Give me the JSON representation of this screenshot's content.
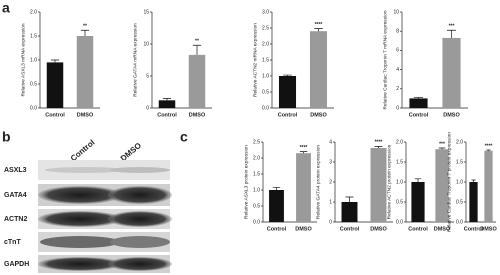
{
  "panels": [
    "a",
    "b",
    "c"
  ],
  "blot": {
    "columns": [
      "Control",
      "DMSO"
    ],
    "rows": [
      "ASXL3",
      "GATA4",
      "ACTN2",
      "cTnT",
      "GAPDH"
    ]
  },
  "chart_data": [
    {
      "type": "bar",
      "ylabel": "Relative ASXL3 mRNA expression",
      "categories": [
        "Control",
        "DMSO"
      ],
      "values": [
        0.95,
        1.5
      ],
      "errors": [
        0.05,
        0.12
      ],
      "colors": [
        "#111111",
        "#9a9a9a"
      ],
      "annotation": "**",
      "ylim": [
        0,
        2
      ],
      "yticks": [
        {
          "value": 0,
          "label": "0.0"
        },
        0.5,
        {
          "value": 1,
          "label": "1.0"
        },
        1.5,
        {
          "value": 2,
          "label": "2.0"
        }
      ]
    },
    {
      "type": "bar",
      "ylabel": "Relative GATA4 mRNA expression",
      "categories": [
        "Control",
        "DMSO"
      ],
      "values": [
        1.2,
        8.3
      ],
      "errors": [
        0.3,
        1.5
      ],
      "colors": [
        "#111111",
        "#9a9a9a"
      ],
      "annotation": "**",
      "ylim": [
        0,
        15
      ],
      "yticks": [
        0,
        5,
        10,
        15
      ]
    },
    {
      "type": "bar",
      "ylabel": "Relative ACTN2 mRNA expression",
      "categories": [
        "Control",
        "DMSO"
      ],
      "values": [
        1.0,
        2.4
      ],
      "errors": [
        0.03,
        0.08
      ],
      "colors": [
        "#111111",
        "#9a9a9a"
      ],
      "annotation": "****",
      "ylim": [
        0,
        3
      ],
      "yticks": [
        {
          "value": 0,
          "label": "0.0"
        },
        0.5,
        {
          "value": 1,
          "label": "1.0"
        },
        1.5,
        {
          "value": 2,
          "label": "2.0"
        },
        2.5,
        {
          "value": 3,
          "label": "3.0"
        }
      ]
    },
    {
      "type": "bar",
      "ylabel": "Relative Cardiac Troponin T mRNA expression",
      "categories": [
        "Control",
        "DMSO"
      ],
      "values": [
        1.0,
        7.3
      ],
      "errors": [
        0.1,
        0.8
      ],
      "colors": [
        "#111111",
        "#9a9a9a"
      ],
      "annotation": "***",
      "ylim": [
        0,
        10
      ],
      "yticks": [
        0,
        2,
        4,
        6,
        8,
        10
      ]
    },
    {
      "type": "bar",
      "ylabel": "Relative ASXL3 protein expression",
      "categories": [
        "Control",
        "DMSO"
      ],
      "values": [
        1.0,
        2.15
      ],
      "errors": [
        0.08,
        0.05
      ],
      "colors": [
        "#111111",
        "#9a9a9a"
      ],
      "annotation": "****",
      "ylim": [
        0,
        2.5
      ],
      "yticks": [
        {
          "value": 0,
          "label": "0.0"
        },
        0.5,
        {
          "value": 1,
          "label": "1.0"
        },
        1.5,
        {
          "value": 2,
          "label": "2.0"
        },
        2.5
      ]
    },
    {
      "type": "bar",
      "ylabel": "Relative GATA4 protein expression",
      "categories": [
        "Control",
        "DMSO"
      ],
      "values": [
        1.0,
        3.7
      ],
      "errors": [
        0.25,
        0.08
      ],
      "colors": [
        "#111111",
        "#9a9a9a"
      ],
      "annotation": "****",
      "ylim": [
        0,
        4
      ],
      "yticks": [
        0,
        1,
        2,
        3,
        4
      ]
    },
    {
      "type": "bar",
      "ylabel": "Relative ACTN2 protein expression",
      "categories": [
        "Control",
        "DMSO"
      ],
      "values": [
        1.0,
        1.82
      ],
      "errors": [
        0.08,
        0.03
      ],
      "colors": [
        "#111111",
        "#9a9a9a"
      ],
      "annotation": "***",
      "ylim": [
        0,
        2
      ],
      "yticks": [
        {
          "value": 0,
          "label": "0.0"
        },
        0.5,
        {
          "value": 1,
          "label": "1.0"
        },
        1.5,
        {
          "value": 2,
          "label": "2.0"
        }
      ]
    },
    {
      "type": "bar",
      "ylabel": "Relative Cardiac Troponin T protein expression",
      "categories": [
        "Control",
        "DMSO"
      ],
      "values": [
        1.0,
        1.78
      ],
      "errors": [
        0.05,
        0.02
      ],
      "colors": [
        "#111111",
        "#9a9a9a"
      ],
      "annotation": "****",
      "ylim": [
        0,
        2
      ],
      "yticks": [
        {
          "value": 0,
          "label": "0.0"
        },
        0.5,
        {
          "value": 1,
          "label": "1.0"
        },
        1.5,
        {
          "value": 2,
          "label": "2.0"
        }
      ]
    }
  ]
}
